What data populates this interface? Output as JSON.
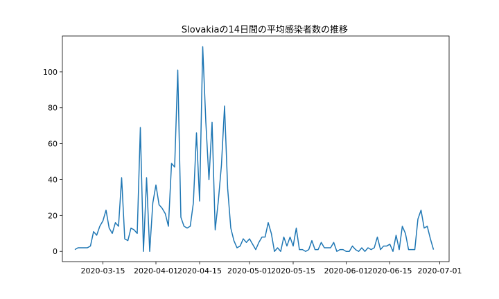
{
  "chart_data": {
    "type": "line",
    "title": "Slovakiaの14日間の平均感染者数の推移",
    "xlabel": "",
    "ylabel": "",
    "x_start": "2020-03-06",
    "x_end": "2020-06-30",
    "xlim": [
      "2020-03-02",
      "2020-07-04"
    ],
    "ylim": [
      -5.7,
      120
    ],
    "grid": false,
    "line_color": "#1f77b4",
    "y_ticks": [
      0,
      20,
      40,
      60,
      80,
      100
    ],
    "x_ticks": [
      {
        "date": "2020-03-15",
        "label": "2020-03-15"
      },
      {
        "date": "2020-04-01",
        "label": "2020-04-01"
      },
      {
        "date": "2020-04-15",
        "label": "2020-04-15"
      },
      {
        "date": "2020-05-01",
        "label": "2020-05-01"
      },
      {
        "date": "2020-05-15",
        "label": "2020-05-15"
      },
      {
        "date": "2020-06-01",
        "label": "2020-06-01"
      },
      {
        "date": "2020-06-15",
        "label": "2020-06-15"
      },
      {
        "date": "2020-07-01",
        "label": "2020-07-01"
      }
    ],
    "values": [
      1,
      2,
      2,
      2,
      2,
      3,
      11,
      9,
      14,
      17,
      23,
      13,
      10,
      16,
      14,
      41,
      7,
      6,
      13,
      12,
      10,
      69,
      0,
      41,
      0,
      27,
      37,
      26,
      24,
      21,
      14,
      49,
      47,
      101,
      19,
      14,
      13,
      14,
      27,
      66,
      28,
      114,
      72,
      40,
      72,
      12,
      28,
      48,
      81,
      35,
      13,
      6,
      2,
      3,
      7,
      5,
      7,
      4,
      1,
      5,
      8,
      8,
      16,
      10,
      0,
      2,
      0,
      8,
      3,
      8,
      3,
      13,
      1,
      1,
      0,
      1,
      6,
      1,
      1,
      5,
      2,
      2,
      2,
      5,
      0,
      1,
      1,
      0,
      0,
      3,
      1,
      0,
      2,
      0,
      2,
      1,
      2,
      8,
      1,
      3,
      3,
      4,
      0,
      9,
      1,
      14,
      10,
      1,
      1,
      1,
      18,
      23,
      13,
      14,
      7,
      1
    ]
  }
}
